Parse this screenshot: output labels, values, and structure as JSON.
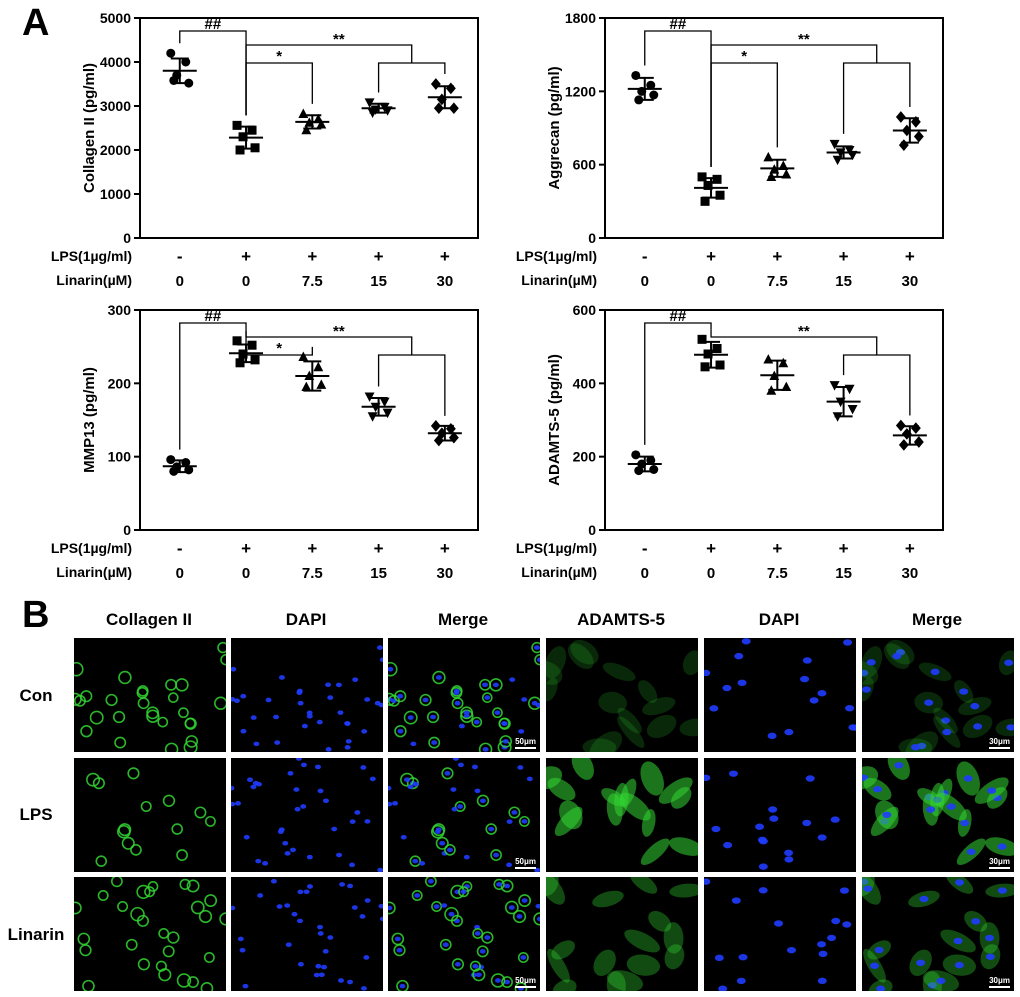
{
  "panel_a_label": "A",
  "panel_b_label": "B",
  "chart_data": [
    {
      "type": "scatter",
      "ylabel": "Collagen II (pg/ml)",
      "ylim": [
        0,
        5000
      ],
      "yticks": [
        "0",
        "1000",
        "2000",
        "3000",
        "4000",
        "5000"
      ],
      "row_labels": [
        "LPS(1µg/ml)",
        "Linarin(µM)"
      ],
      "groups": [
        {
          "lps": "-",
          "linarin": "0",
          "marker": "circle",
          "mean": 3800,
          "sd": 280,
          "points": [
            4200,
            4000,
            3700,
            3520,
            3580
          ]
        },
        {
          "lps": "+",
          "linarin": "0",
          "marker": "square",
          "mean": 2280,
          "sd": 250,
          "points": [
            2560,
            2450,
            2300,
            2050,
            2000
          ]
        },
        {
          "lps": "+",
          "linarin": "7.5",
          "marker": "triangle-up",
          "mean": 2640,
          "sd": 150,
          "points": [
            2820,
            2700,
            2620,
            2580,
            2450
          ]
        },
        {
          "lps": "+",
          "linarin": "15",
          "marker": "triangle-down",
          "mean": 2950,
          "sd": 100,
          "points": [
            3080,
            2980,
            2920,
            2900,
            2850
          ]
        },
        {
          "lps": "+",
          "linarin": "30",
          "marker": "diamond",
          "mean": 3200,
          "sd": 250,
          "points": [
            3500,
            3400,
            3150,
            2950,
            2950
          ]
        }
      ],
      "significance": [
        {
          "label": "##",
          "from": 0,
          "to": 1
        },
        {
          "label": "*",
          "from": 1,
          "to": 2
        },
        {
          "label": "**",
          "from": 1,
          "to": [
            3,
            4
          ]
        }
      ]
    },
    {
      "type": "scatter",
      "ylabel": "Aggrecan (pg/ml)",
      "ylim": [
        0,
        1800
      ],
      "yticks": [
        "0",
        "600",
        "1200",
        "1800"
      ],
      "row_labels": [
        "LPS(1µg/ml)",
        "Linarin(µM)"
      ],
      "groups": [
        {
          "lps": "-",
          "linarin": "0",
          "marker": "circle",
          "mean": 1220,
          "sd": 90,
          "points": [
            1330,
            1250,
            1200,
            1170,
            1130
          ]
        },
        {
          "lps": "+",
          "linarin": "0",
          "marker": "square",
          "mean": 410,
          "sd": 80,
          "points": [
            500,
            480,
            430,
            350,
            300
          ]
        },
        {
          "lps": "+",
          "linarin": "7.5",
          "marker": "triangle-up",
          "mean": 570,
          "sd": 70,
          "points": [
            660,
            590,
            560,
            520,
            500
          ]
        },
        {
          "lps": "+",
          "linarin": "15",
          "marker": "triangle-down",
          "mean": 700,
          "sd": 50,
          "points": [
            770,
            720,
            700,
            680,
            640
          ]
        },
        {
          "lps": "+",
          "linarin": "30",
          "marker": "diamond",
          "mean": 880,
          "sd": 100,
          "points": [
            990,
            950,
            880,
            830,
            760
          ]
        }
      ],
      "significance": [
        {
          "label": "##",
          "from": 0,
          "to": 1
        },
        {
          "label": "*",
          "from": 1,
          "to": 2
        },
        {
          "label": "**",
          "from": 1,
          "to": [
            3,
            4
          ]
        }
      ]
    },
    {
      "type": "scatter",
      "ylabel": "MMP13 (pg/ml)",
      "ylim": [
        0,
        300
      ],
      "yticks": [
        "0",
        "100",
        "200",
        "300"
      ],
      "row_labels": [
        "LPS(1µg/ml)",
        "Linarin(µM)"
      ],
      "groups": [
        {
          "lps": "-",
          "linarin": "0",
          "marker": "circle",
          "mean": 87,
          "sd": 8,
          "points": [
            96,
            92,
            86,
            82,
            80
          ]
        },
        {
          "lps": "+",
          "linarin": "0",
          "marker": "square",
          "mean": 241,
          "sd": 12,
          "points": [
            258,
            252,
            240,
            232,
            228
          ]
        },
        {
          "lps": "+",
          "linarin": "7.5",
          "marker": "triangle-up",
          "mean": 210,
          "sd": 20,
          "points": [
            236,
            222,
            210,
            198,
            195
          ]
        },
        {
          "lps": "+",
          "linarin": "15",
          "marker": "triangle-down",
          "mean": 168,
          "sd": 12,
          "points": [
            182,
            175,
            168,
            160,
            155
          ]
        },
        {
          "lps": "+",
          "linarin": "30",
          "marker": "diamond",
          "mean": 132,
          "sd": 10,
          "points": [
            142,
            138,
            132,
            126,
            122
          ]
        }
      ],
      "significance": [
        {
          "label": "##",
          "from": 0,
          "to": 1
        },
        {
          "label": "*",
          "from": 1,
          "to": 2
        },
        {
          "label": "**",
          "from": 1,
          "to": [
            3,
            4
          ]
        }
      ]
    },
    {
      "type": "scatter",
      "ylabel": "ADAMTS-5 (pg/ml)",
      "ylim": [
        0,
        600
      ],
      "yticks": [
        "0",
        "200",
        "400",
        "600"
      ],
      "row_labels": [
        "LPS(1µg/ml)",
        "Linarin(µM)"
      ],
      "groups": [
        {
          "lps": "-",
          "linarin": "0",
          "marker": "circle",
          "mean": 180,
          "sd": 20,
          "points": [
            205,
            190,
            180,
            165,
            162
          ]
        },
        {
          "lps": "+",
          "linarin": "0",
          "marker": "square",
          "mean": 478,
          "sd": 35,
          "points": [
            520,
            495,
            480,
            450,
            445
          ]
        },
        {
          "lps": "+",
          "linarin": "7.5",
          "marker": "triangle-up",
          "mean": 422,
          "sd": 40,
          "points": [
            465,
            455,
            420,
            390,
            380
          ]
        },
        {
          "lps": "+",
          "linarin": "15",
          "marker": "triangle-down",
          "mean": 350,
          "sd": 40,
          "points": [
            395,
            385,
            350,
            330,
            310
          ]
        },
        {
          "lps": "+",
          "linarin": "30",
          "marker": "diamond",
          "mean": 258,
          "sd": 25,
          "points": [
            285,
            278,
            262,
            240,
            232
          ]
        }
      ],
      "significance": [
        {
          "label": "##",
          "from": 0,
          "to": 1
        },
        {
          "label": "**",
          "from": 1,
          "to": [
            3,
            4
          ]
        }
      ]
    }
  ],
  "panel_b": {
    "column_headers": [
      "Collagen II",
      "DAPI",
      "Merge",
      "ADAMTS-5",
      "DAPI",
      "Merge"
    ],
    "row_headers": [
      "Con",
      "LPS",
      "Linarin"
    ],
    "scale_left": "50μm",
    "scale_right": "30μm",
    "colors": {
      "green": "#33d633",
      "blue": "#1f3cff",
      "background": "#000000"
    }
  }
}
